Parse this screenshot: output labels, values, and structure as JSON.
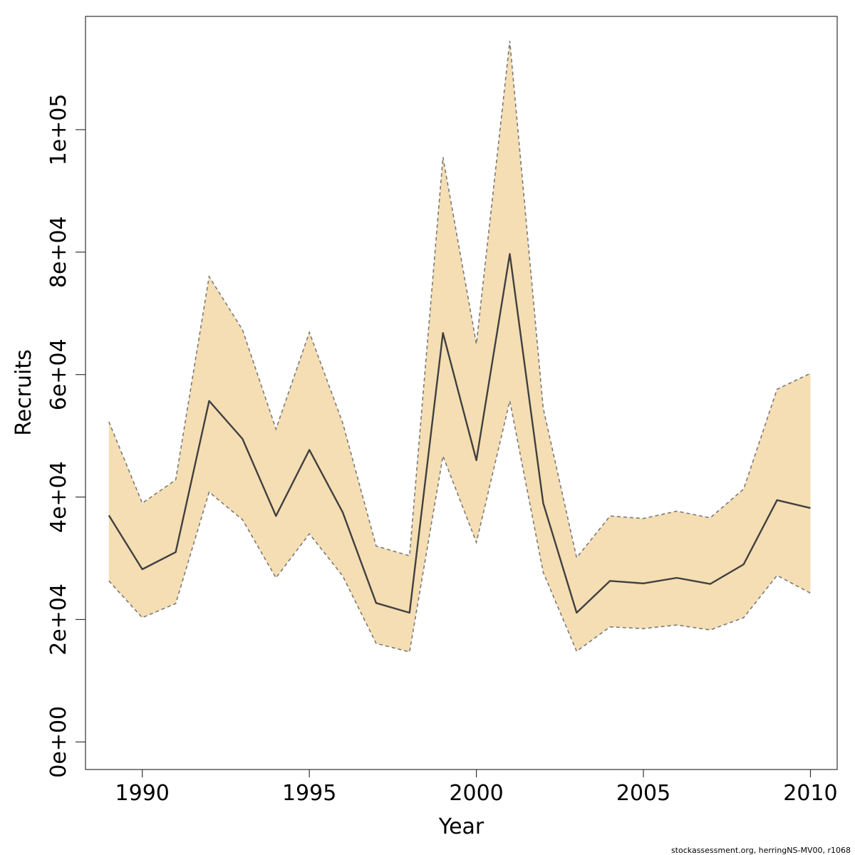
{
  "chart_data": {
    "type": "area",
    "title": "",
    "xlabel": "Year",
    "ylabel": "Recruits",
    "xlim": [
      1988.3,
      2010.8
    ],
    "ylim": [
      -4500,
      118500
    ],
    "x_ticks": [
      1990,
      1995,
      2000,
      2005,
      2010
    ],
    "y_ticks": [
      0,
      20000,
      40000,
      60000,
      80000,
      100000
    ],
    "x_tick_labels": [
      "1990",
      "1995",
      "2000",
      "2005",
      "2010"
    ],
    "y_tick_labels": [
      "0e+00",
      "2e+04",
      "4e+04",
      "6e+04",
      "8e+04",
      "1e+05"
    ],
    "grid": false,
    "legend": "none",
    "x": [
      1989,
      1990,
      1991,
      1992,
      1993,
      1994,
      1995,
      1996,
      1997,
      1998,
      1999,
      2000,
      2001,
      2002,
      2003,
      2004,
      2005,
      2006,
      2007,
      2008,
      2009,
      2010
    ],
    "series": [
      {
        "role": "estimate",
        "values": [
          37000,
          28200,
          31000,
          55700,
          49500,
          36900,
          47700,
          37500,
          22700,
          21100,
          66800,
          46000,
          79700,
          39000,
          21100,
          26300,
          25900,
          26800,
          25800,
          29000,
          39500,
          38200
        ]
      },
      {
        "role": "upper",
        "values": [
          52300,
          39000,
          42800,
          76000,
          67300,
          51100,
          66900,
          52100,
          32000,
          30400,
          95500,
          65000,
          114500,
          54500,
          30100,
          36900,
          36500,
          37700,
          36600,
          41300,
          57600,
          60200
        ]
      },
      {
        "role": "lower",
        "values": [
          26300,
          20300,
          22600,
          40800,
          36300,
          26800,
          34000,
          27100,
          16100,
          14700,
          46700,
          32600,
          55700,
          27700,
          14800,
          18800,
          18500,
          19100,
          18300,
          20300,
          27200,
          24300
        ]
      }
    ],
    "colors": {
      "band_fill": "#f5deb3",
      "band_border": "#7a7a7a",
      "line": "#404040",
      "axis": "#333333"
    }
  },
  "footer": {
    "note": "stockassessment.org, herringNS-MV00, r1068"
  }
}
